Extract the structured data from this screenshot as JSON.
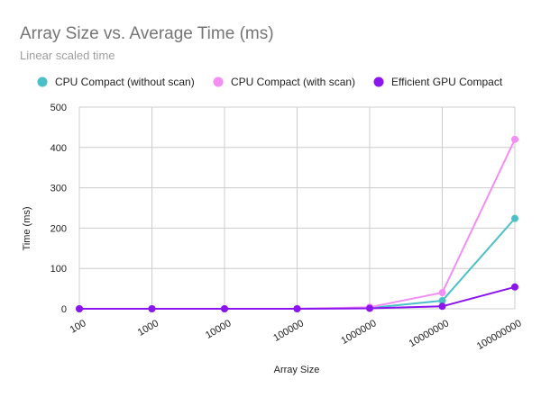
{
  "chart_data": {
    "type": "line",
    "title": "Array Size vs. Average Time (ms)",
    "subtitle": "Linear scaled time",
    "xlabel": "Array Size",
    "ylabel": "Time (ms)",
    "categories": [
      "100",
      "1000",
      "10000",
      "100000",
      "1000000",
      "10000000",
      "100000000"
    ],
    "ylim": [
      0,
      500
    ],
    "yticks": [
      0,
      100,
      200,
      300,
      400,
      500
    ],
    "grid": true,
    "legend_position": "top",
    "series": [
      {
        "name": "CPU Compact (without scan)",
        "color": "#4bc0c8",
        "values": [
          0,
          0,
          0,
          0,
          2,
          20,
          224
        ]
      },
      {
        "name": "CPU Compact (with scan)",
        "color": "#f48df4",
        "values": [
          0,
          0,
          0,
          0,
          4,
          40,
          420
        ]
      },
      {
        "name": "Efficient GPU Compact",
        "color": "#8a15ee",
        "values": [
          0,
          0,
          0,
          0,
          1,
          6,
          54
        ]
      }
    ]
  }
}
